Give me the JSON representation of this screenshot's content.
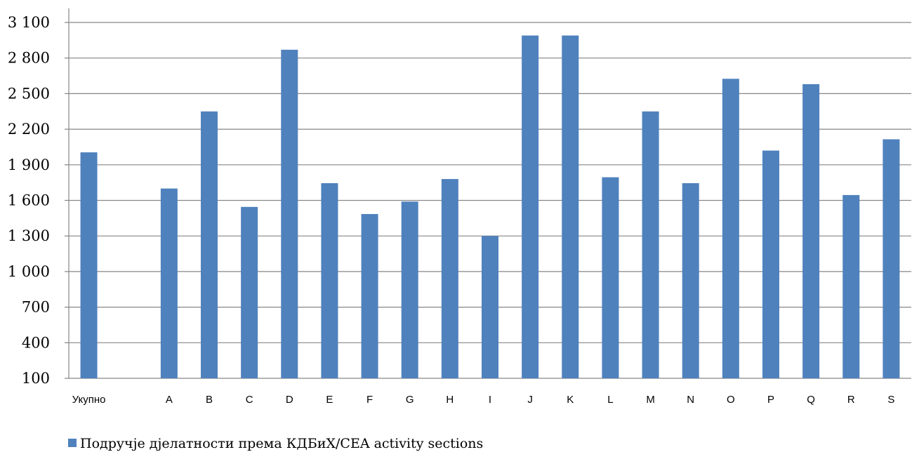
{
  "chart_data": {
    "type": "bar",
    "categories": [
      "Укупно",
      "",
      "A",
      "B",
      "C",
      "D",
      "E",
      "F",
      "G",
      "H",
      "I",
      "J",
      "K",
      "L",
      "M",
      "N",
      "O",
      "P",
      "Q",
      "R",
      "S"
    ],
    "series": [
      {
        "name": "Подручје дјелатности према КДБиХ/CEA activity sections",
        "color": "#4F81BD",
        "values": [
          2005,
          null,
          1700,
          2350,
          1545,
          2870,
          1745,
          1485,
          1590,
          1780,
          1300,
          2990,
          2990,
          1795,
          2350,
          1745,
          2625,
          2020,
          2580,
          1645,
          2115
        ]
      }
    ],
    "yticks": [
      "3 100",
      "2 800",
      "2 500",
      "2 200",
      "1 900",
      "1 600",
      "1 300",
      "1 000",
      "700",
      "400",
      "100"
    ],
    "ylim": [
      100,
      3100
    ],
    "grid": true,
    "legend_position": "bottom-left",
    "title": "",
    "xlabel": "",
    "ylabel": ""
  }
}
